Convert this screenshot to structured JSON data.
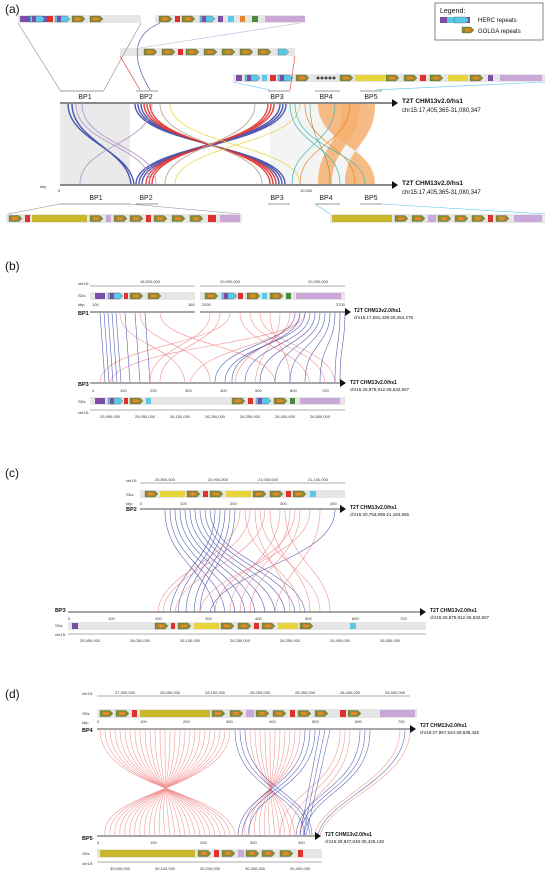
{
  "panels": {
    "a": {
      "label": "(a)",
      "legend": {
        "title": "Legend:",
        "herc": "HERC repeats",
        "golga": "GOLGA repeats"
      },
      "bp_top": [
        "BP1",
        "BP2",
        "BP3",
        "BP4",
        "BP5"
      ],
      "bp_bottom": [
        "BP1",
        "BP2",
        "BP3",
        "BP4",
        "BP5"
      ],
      "top_asm": "T2T CHM13v2.0/hs1",
      "top_coord": "chr15:17,405,365-31,080,347",
      "bot_asm": "T2T CHM13v2.0/hs1",
      "bot_coord": "chr15:17,405,365-31,080,347",
      "kbp": "kbp",
      "tick0": "0",
      "tick10000": "10,000"
    },
    "b": {
      "label": "(b)",
      "chr": "chr15:",
      "top_ticks": [
        "18,500,000",
        "20,000,000",
        "20,300,000"
      ],
      "sds": "SDs",
      "kbp": "kbp",
      "top_kbp_ticks": [
        "100",
        "160",
        "2000",
        "2700"
      ],
      "bp_top": "BP1",
      "top_asm": "T2T CHM13v2.0/hs1",
      "top_coord": "chr15:17,691,439-20,454,275",
      "bp_bot": "BP3",
      "bot_asm": "T2T CHM13v2.0/hs1",
      "bot_coord": "chr15:25,875,912-26,632,507",
      "bot_kbp_ticks": [
        "0",
        "100",
        "200",
        "300",
        "400",
        "500",
        "600",
        "700"
      ],
      "sds2": "SDs",
      "chr2": "chr15:",
      "bot_ticks": [
        "25,950,000",
        "26,050,000",
        "26,150,000",
        "26,250,000",
        "26,350,000",
        "26,450,000",
        "26,550,000"
      ]
    },
    "c": {
      "label": "(c)",
      "chr": "chr15:",
      "top_ticks": [
        "20,800,000",
        "20,900,000",
        "21,000,000",
        "21,100,000"
      ],
      "sds": "SDs",
      "kbp": "kbp",
      "top_kbp_ticks": [
        "0",
        "100",
        "200",
        "300",
        "400"
      ],
      "bp_top": "BP2",
      "top_asm": "T2T CHM13v2.0/hs1",
      "top_coord": "chr15:20,753,698-21,183,655",
      "bp_bot": "BP3",
      "bot_asm": "T2T CHM13v2.0/hs1",
      "bot_coord": "chr15:25,875,912-26,632,507",
      "bot_kbp_ticks": [
        "0",
        "100",
        "200",
        "300",
        "400",
        "500",
        "600",
        "700"
      ],
      "sds2": "SDs",
      "chr2": "chr15:",
      "bot_ticks": [
        "25,950,000",
        "26,050,000",
        "26,150,000",
        "26,250,000",
        "26,350,000",
        "26,450,000",
        "26,550,000"
      ]
    },
    "d": {
      "label": "(d)",
      "chr": "chr15:",
      "top_ticks": [
        "27,950,000",
        "28,050,000",
        "28,150,000",
        "28,250,000",
        "28,350,000",
        "28,450,000",
        "28,550,000"
      ],
      "sds": "SDs",
      "kbp": "kbp",
      "top_kbp_ticks": [
        "0",
        "100",
        "200",
        "300",
        "400",
        "500",
        "600",
        "700"
      ],
      "bp_top": "BP4",
      "top_asm": "T2T CHM13v2.0/hs1",
      "top_coord": "chr15:27,967,534-28,638,426",
      "bp_bot": "BP5",
      "bot_asm": "T2T CHM13v2.0/hs1",
      "bot_coord": "chr15:29,947,048-30,429,130",
      "bot_kbp_ticks": [
        "0",
        "100",
        "200",
        "300",
        "400"
      ],
      "sds2": "SDs",
      "chr2": "chr15:",
      "bot_ticks": [
        "30,000,000",
        "30,100,000",
        "30,200,000",
        "30,300,000",
        "30,400,000"
      ]
    }
  },
  "colors": {
    "herc_purple": "#7b4fa8",
    "herc_cyan": "#5bc8e8",
    "golga_olive": "#8a8d2e",
    "golga_orange": "#e7862c",
    "red": "#e0302a",
    "yellow": "#e6d43a",
    "green": "#4c8a3a",
    "blue_link": "#3b47a7",
    "pink_link": "#ef8082",
    "peach_link": "#f6b070",
    "teal_link": "#3fb7b0",
    "lilac": "#c9a8d8",
    "grey_track": "#e6e6e6"
  }
}
